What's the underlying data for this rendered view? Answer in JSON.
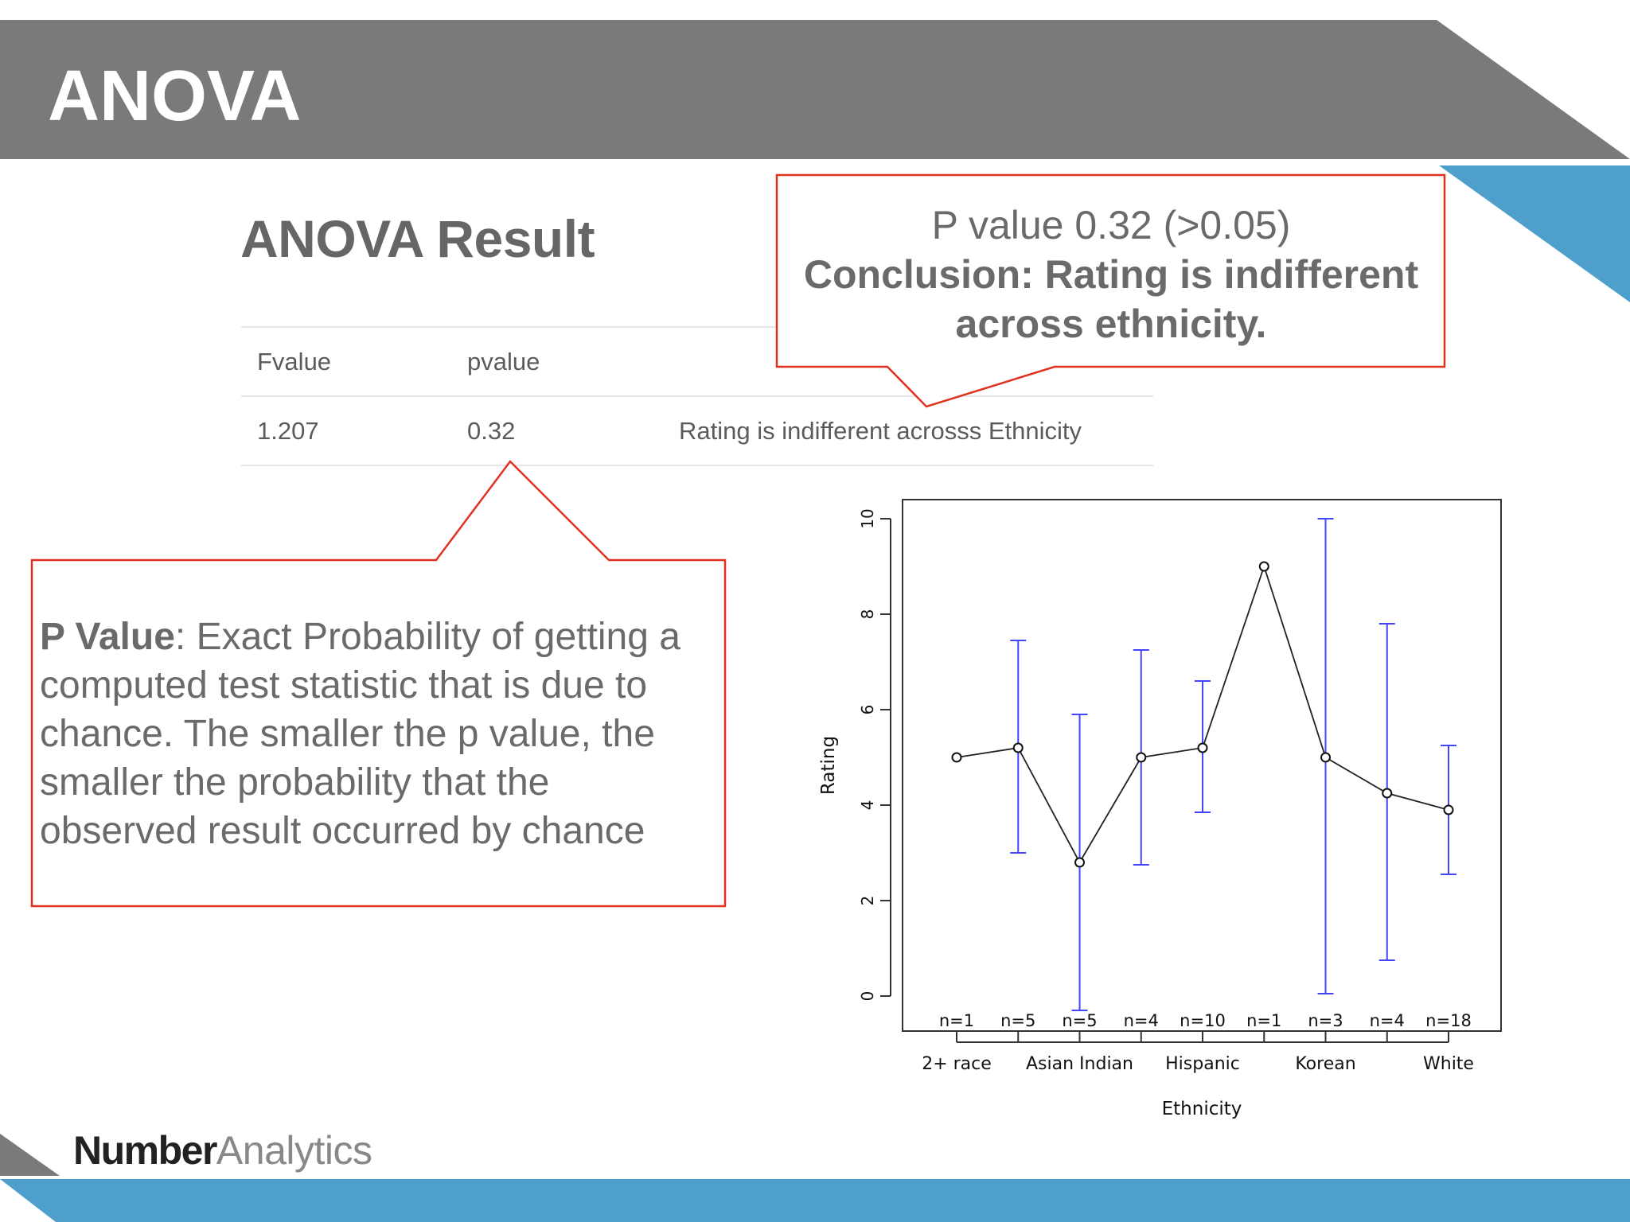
{
  "slide": {
    "title": "ANOVA"
  },
  "result": {
    "heading": "ANOVA Result",
    "table": {
      "headers": [
        "Fvalue",
        "pvalue",
        ""
      ],
      "row": [
        "1.207",
        "0.32",
        "Rating is indifferent acrosss Ethnicity"
      ]
    }
  },
  "callout_top": {
    "line1": "P value 0.32 (>0.05)",
    "line2": "Conclusion: Rating is indifferent",
    "line3": "across ethnicity."
  },
  "callout_left": {
    "bold": "P Value",
    "text": ": Exact Probability of getting a computed test statistic that is due to chance. The smaller the p value, the smaller the probability that the observed result occurred by chance"
  },
  "logo": {
    "number": "Number",
    "analytics": "Analytics"
  },
  "colors": {
    "header_gray": "#7a7b78",
    "accent_blue": "#4f9fcd",
    "callout_red": "#e0311f",
    "error_bar_blue": "#4444ff"
  },
  "chart_data": {
    "type": "line",
    "xlabel": "Ethnicity",
    "ylabel": "Rating",
    "ylim": [
      0,
      10
    ],
    "yticks": [
      "0",
      "2",
      "4",
      "6",
      "8",
      "10"
    ],
    "x_tick_labels": [
      "2+ race",
      "Asian Indian",
      "Hispanic",
      "Korean",
      "White"
    ],
    "categories": [
      "2+ race",
      "",
      "Asian Indian",
      "",
      "Hispanic",
      "",
      "Korean",
      "",
      "White"
    ],
    "counts": [
      "n=1",
      "n=5",
      "n=5",
      "n=4",
      "n=10",
      "n=1",
      "n=3",
      "n=4",
      "n=18"
    ],
    "means": [
      5.0,
      5.2,
      2.8,
      5.0,
      5.2,
      9.0,
      5.0,
      4.25,
      3.9
    ],
    "error_low": [
      null,
      3.0,
      -0.3,
      2.75,
      3.85,
      null,
      0.05,
      0.75,
      2.55
    ],
    "error_high": [
      null,
      7.45,
      5.9,
      7.25,
      6.6,
      null,
      10.0,
      7.8,
      5.25
    ],
    "grid": false
  }
}
